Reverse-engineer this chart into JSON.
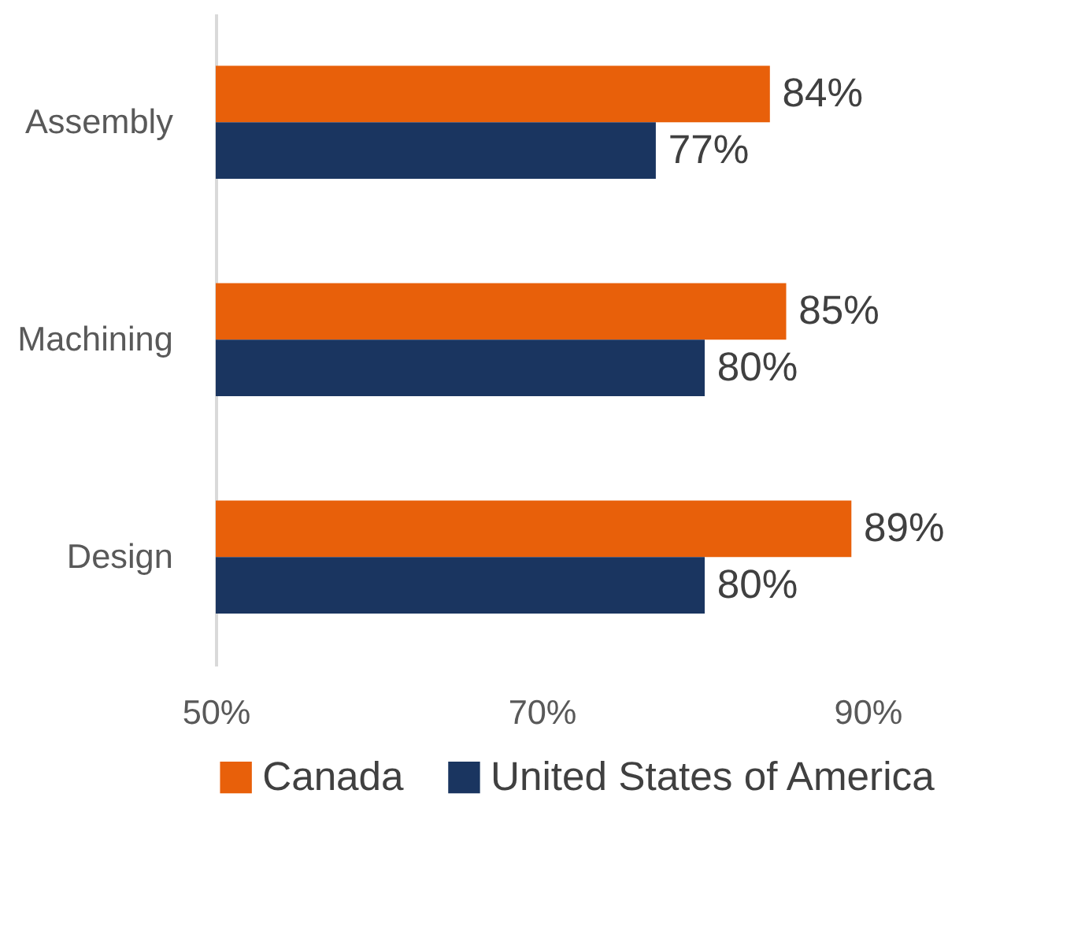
{
  "chart_data": {
    "type": "bar",
    "orientation": "horizontal",
    "categories": [
      "Assembly",
      "Machining",
      "Design"
    ],
    "series": [
      {
        "name": "Canada",
        "color": "#e8600a",
        "values": [
          84,
          85,
          89
        ],
        "value_labels": [
          "84%",
          "85%",
          "89%"
        ]
      },
      {
        "name": "United States of America",
        "color": "#1a3560",
        "values": [
          77,
          80,
          80
        ],
        "value_labels": [
          "77%",
          "80%",
          "80%"
        ]
      }
    ],
    "xlim": [
      50,
      90
    ],
    "xticks": [
      {
        "value": 50,
        "label": "50%"
      },
      {
        "value": 70,
        "label": "70%"
      },
      {
        "value": 90,
        "label": "90%"
      }
    ],
    "grid": false,
    "legend": "bottom"
  }
}
